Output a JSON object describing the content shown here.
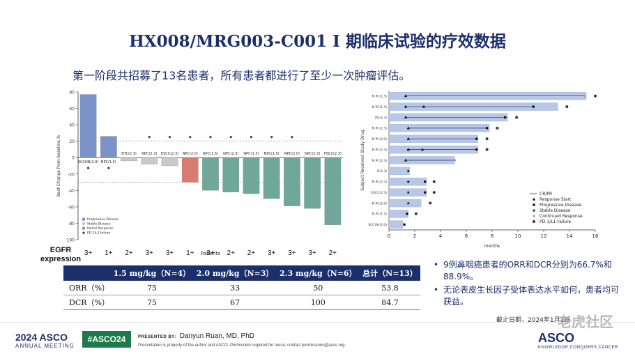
{
  "title": "HX008/MRG003-C001 I 期临床试验的疗效数据",
  "subtitle": "第一阶段共招募了13名患者，所有患者都进行了至少一次肿瘤评估。",
  "chart_data": [
    {
      "type": "bar",
      "ylabel": "Best Change from baseline,%",
      "xlabel": "Patients",
      "ylim": [
        -100,
        80
      ],
      "yticks": [
        80,
        60,
        40,
        20,
        0,
        -20,
        -40,
        -60,
        -80,
        -100
      ],
      "reference_lines": [
        20,
        -30
      ],
      "categories": [
        "SCCHN(2.0)",
        "NPC(1.5)",
        "BTC(2.3)",
        "NPC(2.3)",
        "ESCC(2.3)",
        "NPC(2.0)",
        "NPC(1.5)",
        "NPC(2.3)",
        "NPC(1.5)",
        "NPC(1.5)",
        "NPC(2.0)",
        "NPC(2.3)",
        "PSCC(2.3)"
      ],
      "values": [
        77,
        26,
        -4,
        -8,
        -10,
        -30,
        -40,
        -42,
        -44,
        -50,
        -59,
        -62,
        -82
      ],
      "response": [
        "Progressive Disease",
        "Progressive Disease",
        "Stable Disease",
        "Stable Disease",
        "Stable Disease",
        "Partial Response",
        "Partial Response",
        "Partial Response",
        "Partial Response",
        "Partial Response",
        "Partial Response",
        "Partial Response",
        "Partial Response"
      ],
      "pd_l1_failure": [
        true,
        true,
        false,
        true,
        true,
        true,
        true,
        true,
        true,
        true,
        true,
        false,
        false
      ],
      "egfr_expression": [
        "3+",
        "1+",
        "2+",
        "3+",
        "3+",
        "1+",
        "3+",
        "2+",
        "2+",
        "3+",
        "3+",
        "3+",
        "2+"
      ],
      "legend": [
        "Progressive Disease",
        "Stable Disease",
        "Partial Response",
        "PD-1/L1 failure"
      ],
      "colors": {
        "Progressive Disease": "#7b93c8",
        "Stable Disease": "#c9c9c9",
        "Partial Response": "#d97b6e",
        "Partial Response 2": "#6fa898",
        "pd_l1": "#6b1a4f"
      }
    },
    {
      "type": "swimmer",
      "xlabel": "months",
      "ylabel": "Subject Received Study Drug",
      "xlim": [
        0,
        16
      ],
      "xticks": [
        0,
        2,
        4,
        6,
        8,
        10,
        12,
        14,
        16
      ],
      "categories": [
        "N PC(1.5)",
        "N PC(1.5)",
        "PG(2.3)",
        "N PC(2.3)",
        "N PC(2.0)",
        "N PC(2.3)",
        "N PC(2.3)",
        "B(2.3)",
        "N PC(2.3)",
        "ESCC(2.3)",
        "N PC(2.0)",
        "N PC(1.5)",
        "SCC(N)(2.0)"
      ],
      "durations": [
        15.3,
        13.1,
        9.2,
        7.8,
        6.9,
        6.9,
        5.1,
        1.6,
        2.9,
        2.9,
        2.5,
        1.5,
        1.1
      ],
      "cr_pr_start": [
        1.3,
        1.3,
        1.3,
        1.5,
        1.5,
        1.5,
        1.3,
        null,
        null,
        null,
        null,
        null,
        null
      ],
      "cr_pr_end": [
        15.3,
        11.2,
        9.2,
        7.6,
        6.8,
        6.8,
        5.1,
        null,
        null,
        null,
        null,
        null,
        null
      ],
      "response_start": [
        null,
        2.7,
        null,
        null,
        null,
        2.6,
        null,
        null,
        null,
        null,
        null,
        null,
        null
      ],
      "progressive_disease": [
        null,
        11.2,
        9.0,
        7.6,
        6.8,
        6.8,
        null,
        null,
        2.8,
        2.8,
        null,
        1.4,
        1.2
      ],
      "stable_disease": [
        null,
        null,
        null,
        null,
        null,
        1.5,
        null,
        1.5,
        1.5,
        1.5,
        1.5,
        null,
        null
      ],
      "continued_response": [
        15.2,
        null,
        null,
        null,
        null,
        null,
        5.1,
        null,
        null,
        null,
        null,
        null,
        null
      ],
      "pd_l1_failure": [
        16.0,
        13.8,
        9.9,
        8.4,
        7.6,
        7.6,
        null,
        null,
        3.5,
        3.5,
        3.2,
        2.1,
        null
      ],
      "legend": [
        "CR/PR",
        "Response Start",
        "Progressive Disease",
        "Stable Disease",
        "Continued Response",
        "PD-1/L1 Failure"
      ],
      "colors": {
        "bar": "#b8c7e6",
        "bar_edge": "#8da3cf",
        "line": "#1c2f6b",
        "pd_l1": "#6b1a4f"
      }
    }
  ],
  "egfr": {
    "label_line1": "EGFR",
    "label_line2": "expression"
  },
  "table": {
    "headers": [
      "",
      "1.5 mg/kg（N=4）",
      "2.0 mg/kg（N=3）",
      "2.3 mg/kg（N=6）",
      "总计（N=13）"
    ],
    "rows": [
      [
        "ORR（%）",
        "75",
        "33",
        "50",
        "53.8"
      ],
      [
        "DCR（%）",
        "75",
        "67",
        "100",
        "84.7"
      ]
    ]
  },
  "bullets": [
    "9例鼻咽癌患者的ORR和DCR分别为66.7%和88.9%。",
    "无论表皮生长因子受体表达水平如何，患者均可获益。"
  ],
  "cutoff": "截止日期，2024年1月1日",
  "footer": {
    "year": "2024 ASCO",
    "meeting": "ANNUAL MEETING",
    "hashtag": "#ASCO24",
    "presented_label": "PRESENTED BY:",
    "presenter": "Danyun Ruan, MD, PhD",
    "notice": "Presentation is property of the author and ASCO. Permission required for reuse; contact permissions@asco.org.",
    "asco": "ASCO",
    "asco_sub": "KNOWLEDGE CONQUERS CANCER"
  },
  "watermark": "老虎社区"
}
